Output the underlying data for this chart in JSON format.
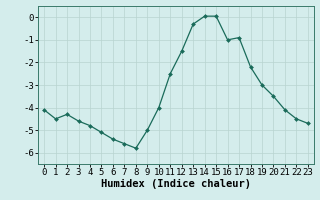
{
  "x": [
    0,
    1,
    2,
    3,
    4,
    5,
    6,
    7,
    8,
    9,
    10,
    11,
    12,
    13,
    14,
    15,
    16,
    17,
    18,
    19,
    20,
    21,
    22,
    23
  ],
  "y": [
    -4.1,
    -4.5,
    -4.3,
    -4.6,
    -4.8,
    -5.1,
    -5.4,
    -5.6,
    -5.8,
    -5.0,
    -4.0,
    -2.5,
    -1.5,
    -0.3,
    0.05,
    0.05,
    -1.0,
    -0.9,
    -2.2,
    -3.0,
    -3.5,
    -4.1,
    -4.5,
    -4.7
  ],
  "line_color": "#1a6b5a",
  "marker": "D",
  "marker_size": 2.0,
  "xlabel": "Humidex (Indice chaleur)",
  "xlim": [
    -0.5,
    23.5
  ],
  "ylim": [
    -6.5,
    0.5
  ],
  "yticks": [
    0,
    -1,
    -2,
    -3,
    -4,
    -5,
    -6
  ],
  "xticks": [
    0,
    1,
    2,
    3,
    4,
    5,
    6,
    7,
    8,
    9,
    10,
    11,
    12,
    13,
    14,
    15,
    16,
    17,
    18,
    19,
    20,
    21,
    22,
    23
  ],
  "bg_color": "#d4edec",
  "grid_color": "#b8d4d0",
  "tick_label_fontsize": 6.5,
  "xlabel_fontsize": 7.5,
  "line_width": 0.9
}
